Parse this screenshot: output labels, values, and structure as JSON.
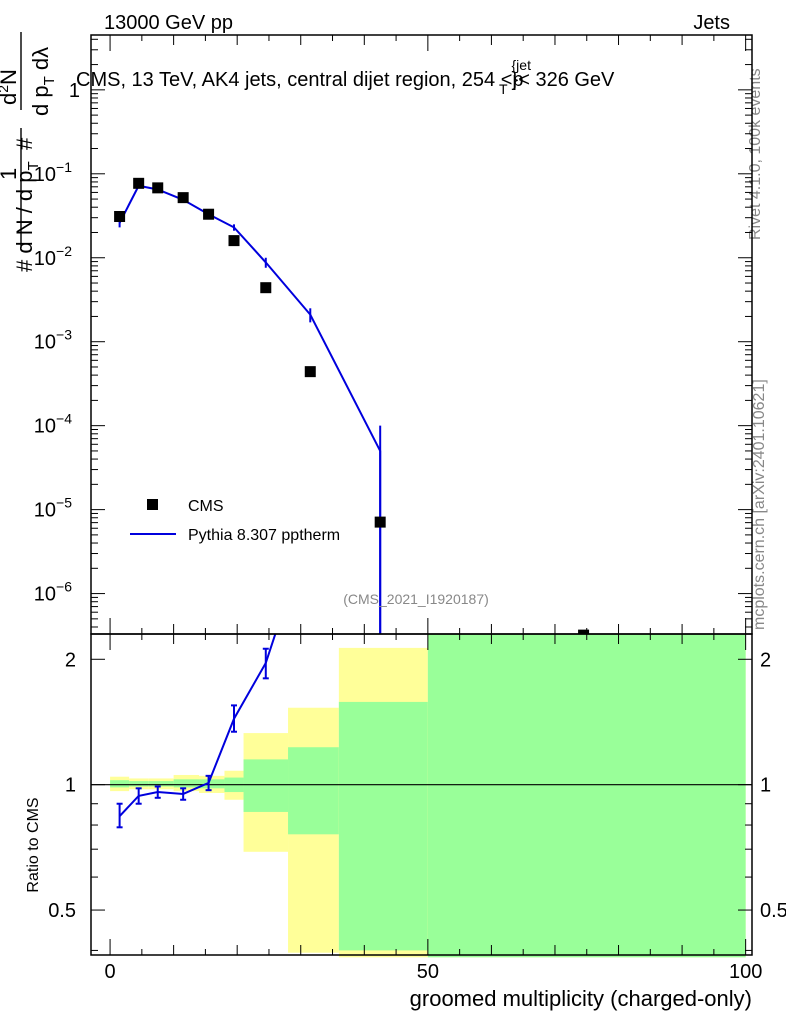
{
  "header": {
    "left": "13000 GeV pp",
    "right": "Jets"
  },
  "title_parts": {
    "pre": "CMS, 13 TeV, AK4 jets, central dijet region, 254 <p",
    "sup": "{jet",
    "sub": "T",
    "post": "}< 326 GeV"
  },
  "side_labels": {
    "rivet": "Rivet 4.1.0,  100k events",
    "mcplots": "mcplots.cern.ch [arXiv:2401.10621]"
  },
  "watermark": "(CMS_2021_I1920187)",
  "legend": {
    "cms": "CMS",
    "pythia": "Pythia 8.307 pptherm"
  },
  "ylabel_ratio": "Ratio to CMS",
  "xlabel": "groomed multiplicity (charged-only)",
  "ylabel_main": {
    "pre": "# ",
    "one": "1",
    "den": "d N / d p",
    "den_sub": "T",
    "hash": "#",
    "num2": "d",
    "num2_sup": "2",
    "num2_post": "N",
    "den2": "d p",
    "den2_sub": "T",
    "den2_post": " dλ"
  },
  "ticks": {
    "main_y": [
      {
        "value": 1,
        "base": "1",
        "exp": ""
      },
      {
        "value": 0.1,
        "base": "10",
        "exp": "−1"
      },
      {
        "value": 0.01,
        "base": "10",
        "exp": "−2"
      },
      {
        "value": 0.001,
        "base": "10",
        "exp": "−3"
      },
      {
        "value": 0.0001,
        "base": "10",
        "exp": "−4"
      },
      {
        "value": 1e-05,
        "base": "10",
        "exp": "−5"
      },
      {
        "value": 1e-06,
        "base": "10",
        "exp": "−6"
      }
    ],
    "ratio_y": [
      {
        "value": 2,
        "label": "2"
      },
      {
        "value": 1,
        "label": "1"
      },
      {
        "value": 0.5,
        "label": "0.5"
      }
    ],
    "x": [
      {
        "value": 0,
        "label": "0"
      },
      {
        "value": 50,
        "label": "50"
      },
      {
        "value": 100,
        "label": "100"
      }
    ]
  },
  "colors": {
    "mc": "#0000dd",
    "data": "#000000",
    "band_stat": "#99ff99",
    "band_total": "#ffff99"
  },
  "chart_data": {
    "type": "scatter",
    "xlabel": "groomed multiplicity (charged-only)",
    "xlim": [
      -3,
      101
    ],
    "main_ylim": [
      3.3e-07,
      4.5
    ],
    "main_yscale": "log",
    "ratio_ylim": [
      0.39,
      2.3
    ],
    "ratio_yscale": "log",
    "series": [
      {
        "name": "CMS",
        "points": [
          {
            "x": 1.5,
            "y": 0.031
          },
          {
            "x": 4.5,
            "y": 0.077
          },
          {
            "x": 7.5,
            "y": 0.068
          },
          {
            "x": 11.5,
            "y": 0.052
          },
          {
            "x": 15.5,
            "y": 0.033
          },
          {
            "x": 19.5,
            "y": 0.016
          },
          {
            "x": 24.5,
            "y": 0.0044
          },
          {
            "x": 31.5,
            "y": 0.00044
          },
          {
            "x": 42.5,
            "y": 7.1e-06
          },
          {
            "x": 74.5,
            "y": 3.2e-07
          }
        ]
      },
      {
        "name": "Pythia 8.307 pptherm",
        "points": [
          {
            "x": 1.5,
            "y": 0.026,
            "err": 0.003
          },
          {
            "x": 4.5,
            "y": 0.072,
            "err": 0.003
          },
          {
            "x": 7.5,
            "y": 0.065,
            "err": 0.003
          },
          {
            "x": 11.5,
            "y": 0.049,
            "err": 0.003
          },
          {
            "x": 15.5,
            "y": 0.033,
            "err": 0.002
          },
          {
            "x": 19.5,
            "y": 0.023,
            "err": 0.002
          },
          {
            "x": 24.5,
            "y": 0.0088,
            "err": 0.0012
          },
          {
            "x": 31.5,
            "y": 0.0021,
            "err": 0.0004
          },
          {
            "x": 42.5,
            "y": 5e-05,
            "err": 5e-05
          },
          {
            "x": 42.5,
            "y": 3.3e-07
          }
        ]
      }
    ],
    "ratio_mc": [
      {
        "x": 1.5,
        "y": 0.84,
        "ylo": 0.79,
        "yhi": 0.9
      },
      {
        "x": 4.5,
        "y": 0.94,
        "ylo": 0.9,
        "yhi": 0.98
      },
      {
        "x": 7.5,
        "y": 0.96,
        "ylo": 0.93,
        "yhi": 0.99
      },
      {
        "x": 11.5,
        "y": 0.95,
        "ylo": 0.92,
        "yhi": 0.98
      },
      {
        "x": 15.5,
        "y": 1.01,
        "ylo": 0.97,
        "yhi": 1.05
      },
      {
        "x": 19.5,
        "y": 1.44,
        "ylo": 1.34,
        "yhi": 1.55
      },
      {
        "x": 24.5,
        "y": 1.96,
        "ylo": 1.8,
        "yhi": 2.12
      },
      {
        "x": 26.0,
        "y": 2.3
      }
    ],
    "ratio_bands": [
      {
        "x0": 0,
        "x1": 3,
        "stat": [
          0.985,
          1.025
        ],
        "total": [
          0.965,
          1.045
        ]
      },
      {
        "x0": 3,
        "x1": 6,
        "stat": [
          0.99,
          1.02
        ],
        "total": [
          0.975,
          1.035
        ]
      },
      {
        "x0": 6,
        "x1": 10,
        "stat": [
          0.99,
          1.02
        ],
        "total": [
          0.975,
          1.035
        ]
      },
      {
        "x0": 10,
        "x1": 14,
        "stat": [
          0.985,
          1.03
        ],
        "total": [
          0.965,
          1.055
        ]
      },
      {
        "x0": 14,
        "x1": 18,
        "stat": [
          0.98,
          1.03
        ],
        "total": [
          0.955,
          1.05
        ]
      },
      {
        "x0": 18,
        "x1": 21,
        "stat": [
          0.96,
          1.04
        ],
        "total": [
          0.92,
          1.08
        ]
      },
      {
        "x0": 21,
        "x1": 28,
        "stat": [
          0.86,
          1.15
        ],
        "total": [
          0.69,
          1.33
        ]
      },
      {
        "x0": 28,
        "x1": 36,
        "stat": [
          0.76,
          1.23
        ],
        "total": [
          0.395,
          1.53
        ]
      },
      {
        "x0": 36,
        "x1": 50,
        "stat": [
          0.4,
          1.58
        ],
        "total": [
          0.385,
          2.13
        ]
      },
      {
        "x0": 50,
        "x1": 100,
        "stat": [
          0.385,
          2.3
        ],
        "total": [
          0.385,
          2.3
        ]
      }
    ]
  }
}
